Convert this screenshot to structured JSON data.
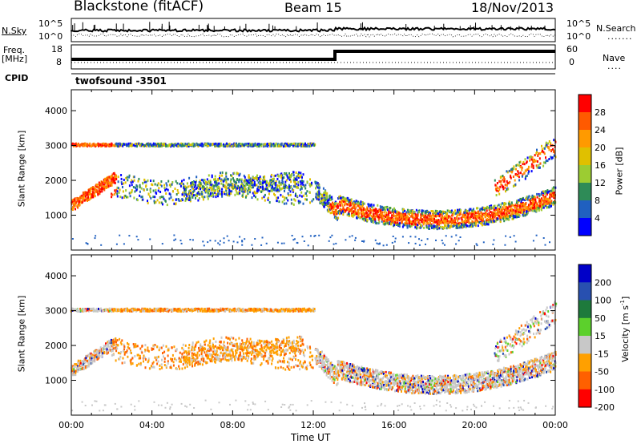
{
  "header": {
    "station": "Blackstone (fitACF)",
    "beam": "Beam 15",
    "date": "18/Nov/2013"
  },
  "strip": {
    "nsky_label": "N.Sky",
    "nsearch_label": "N.Search",
    "nsky_ticks": [
      "10^5",
      "10^0"
    ],
    "freq_label_top": "Freq.",
    "freq_label_unit": "[MHz]",
    "freq_ticks": [
      "18",
      "8"
    ],
    "nave_label": "Nave",
    "nave_ticks": [
      "60",
      "0"
    ],
    "cpid_label": "CPID",
    "cpid_value": "twofsound -3501"
  },
  "chart_data": [
    {
      "type": "heatmap",
      "name": "power-panel",
      "xlabel": "Time UT",
      "ylabel": "Slant Range [km]",
      "xlim": [
        0,
        24
      ],
      "ylim": [
        0,
        4600
      ],
      "y_ticks": [
        1000,
        2000,
        3000,
        4000
      ],
      "y_tick_labels": [
        "1000",
        "2000",
        "3000",
        "4000"
      ],
      "colorbar_label": "Power [dB]",
      "colorbar_ticks": [
        "28",
        "24",
        "20",
        "16",
        "12",
        "8",
        "4"
      ],
      "colors": [
        "#ff0000",
        "#ff5a00",
        "#ff9a00",
        "#e0c000",
        "#9ccc32",
        "#2e8b57",
        "#2060c0",
        "#0000ff"
      ]
    },
    {
      "type": "heatmap",
      "name": "velocity-panel",
      "xlabel": "Time UT",
      "ylabel": "Slant Range [km]",
      "xlim": [
        0,
        24
      ],
      "ylim": [
        0,
        4600
      ],
      "y_ticks": [
        1000,
        2000,
        3000,
        4000
      ],
      "y_tick_labels": [
        "1000",
        "2000",
        "3000",
        "4000"
      ],
      "x_tick_labels": [
        "00:00",
        "04:00",
        "08:00",
        "12:00",
        "16:00",
        "20:00",
        "00:00"
      ],
      "colorbar_label": "Velocity [m s",
      "colorbar_label_sup": "-1",
      "colorbar_label_end": "]",
      "colorbar_ticks": [
        "200",
        "100",
        "50",
        "15",
        "-15",
        "-50",
        "-100",
        "-200"
      ],
      "colors": [
        "#0000c8",
        "#2850b0",
        "#1e7a3c",
        "#5cd02c",
        "#c8c8c8",
        "#ffa000",
        "#ff6000",
        "#ff0000"
      ]
    }
  ]
}
